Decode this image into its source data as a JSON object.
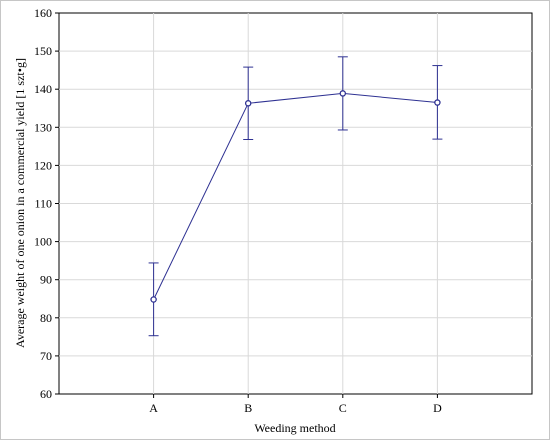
{
  "chart_data": {
    "type": "line",
    "xlabel": "Weeding method",
    "ylabel": "Average weight of one onion in a commercial yield [1 szt•g]",
    "categories": [
      "A",
      "B",
      "C",
      "D"
    ],
    "ylim": [
      60,
      160
    ],
    "yticks": [
      60,
      70,
      80,
      90,
      100,
      110,
      120,
      130,
      140,
      150,
      160
    ],
    "grid": true,
    "series": [
      {
        "values": [
          84.8,
          136.3,
          138.9,
          136.5
        ],
        "error_low": [
          75.3,
          126.8,
          129.3,
          126.9
        ],
        "error_high": [
          94.4,
          145.8,
          148.5,
          146.2
        ],
        "color": "#2e3192"
      }
    ]
  }
}
